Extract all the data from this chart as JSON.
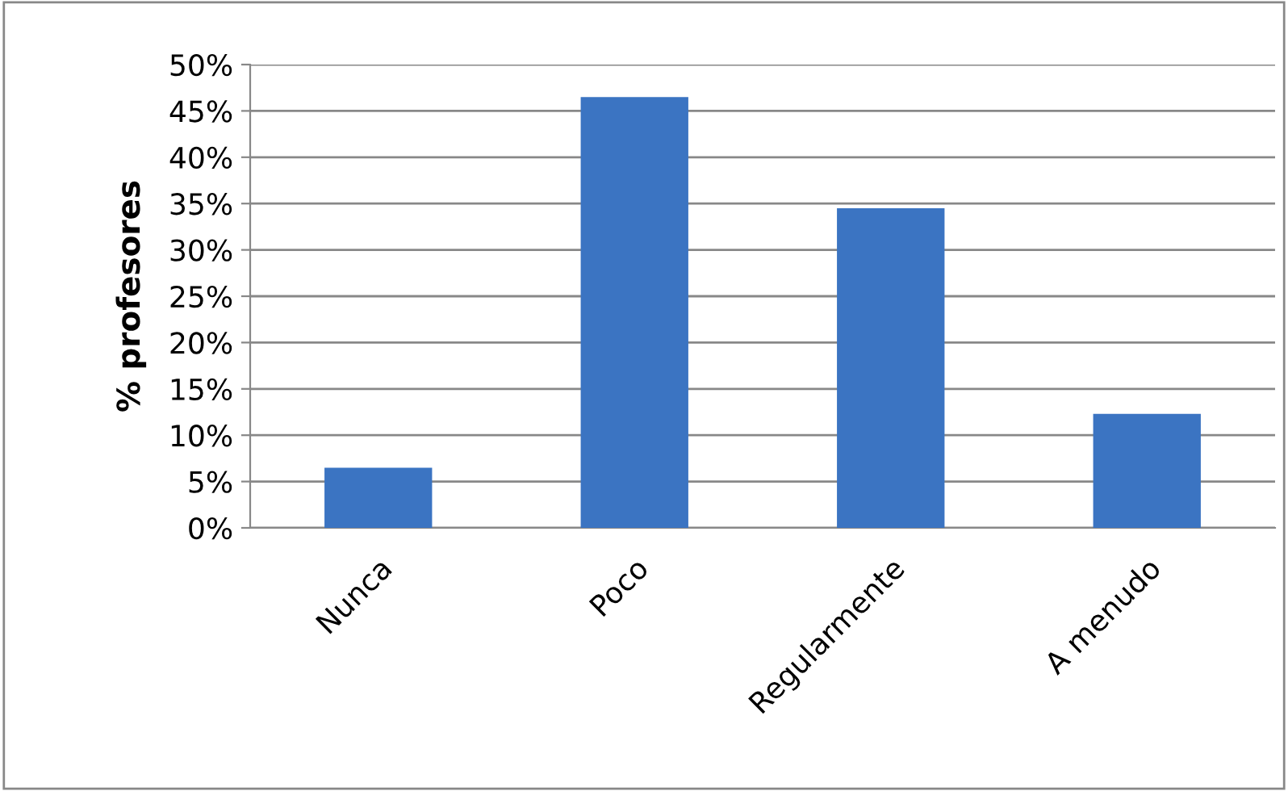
{
  "chart_data": {
    "type": "bar",
    "ylabel": "% profesores",
    "categories": [
      "Nunca",
      "Poco",
      "Regularmente",
      "A menudo"
    ],
    "values": [
      6.5,
      46.5,
      34.5,
      12.3
    ],
    "color": "#3b74c2",
    "ylim": [
      0,
      50
    ],
    "yticks": [
      {
        "value": 0,
        "label": "0%"
      },
      {
        "value": 5,
        "label": "5%"
      },
      {
        "value": 10,
        "label": "10%"
      },
      {
        "value": 15,
        "label": "15%"
      },
      {
        "value": 20,
        "label": "20%"
      },
      {
        "value": 25,
        "label": "25%"
      },
      {
        "value": 30,
        "label": "30%"
      },
      {
        "value": 35,
        "label": "35%"
      },
      {
        "value": 40,
        "label": "40%"
      },
      {
        "value": 45,
        "label": "45%"
      },
      {
        "value": 50,
        "label": "50%"
      }
    ],
    "grid": "y",
    "legend": false
  }
}
